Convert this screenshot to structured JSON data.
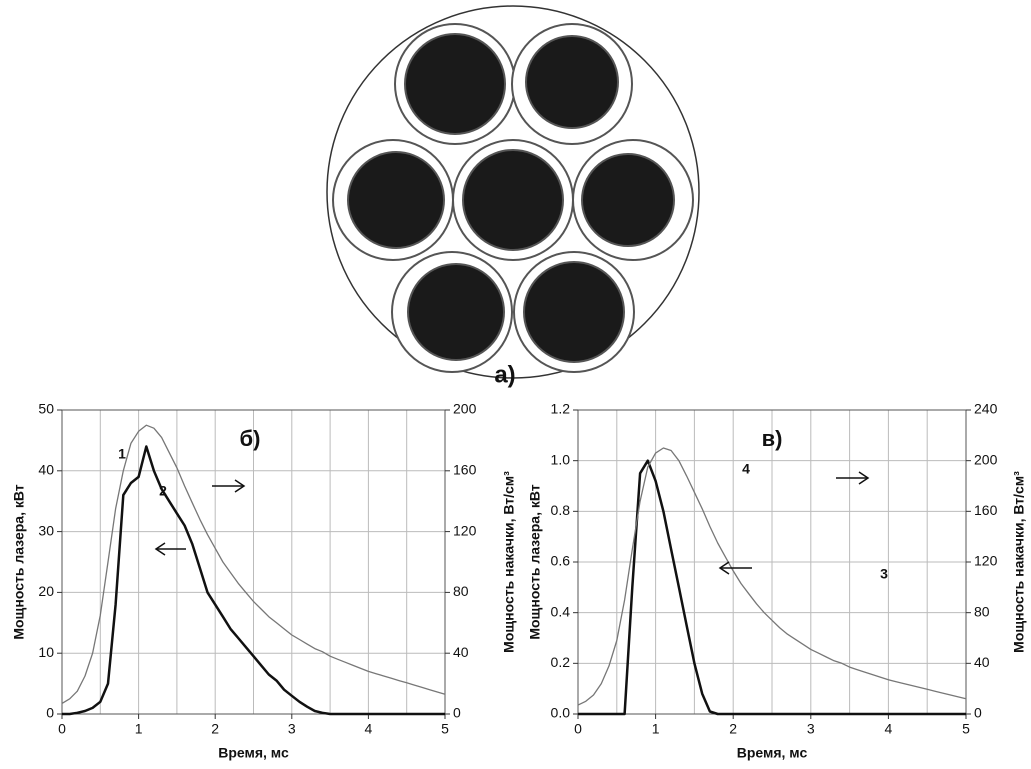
{
  "figure": {
    "label": "а)"
  },
  "chart_data": [
    {
      "type": "line",
      "panel_label": "б)",
      "annotations": [
        "1",
        "2"
      ],
      "xlabel": "Время, мс",
      "ylabel": "Мощность лазера, кВт",
      "y2label": "Мощность накачки, Вт/см³",
      "xlim": [
        0,
        5
      ],
      "xticks": [
        0,
        1,
        2,
        3,
        4,
        5
      ],
      "x_minor_ticks": [
        0.5,
        1.5,
        2.5,
        3.5,
        4.5
      ],
      "ylim": [
        0,
        50
      ],
      "yticks": [
        0,
        10,
        20,
        30,
        40,
        50
      ],
      "y2lim": [
        0,
        200
      ],
      "y2ticks": [
        0,
        40,
        80,
        120,
        160,
        200
      ],
      "grid": true,
      "x": [
        0,
        0.1,
        0.2,
        0.3,
        0.4,
        0.5,
        0.6,
        0.7,
        0.8,
        0.9,
        1,
        1.1,
        1.2,
        1.3,
        1.4,
        1.5,
        1.6,
        1.7,
        1.8,
        1.9,
        2,
        2.1,
        2.2,
        2.3,
        2.4,
        2.5,
        2.6,
        2.7,
        2.8,
        2.9,
        3,
        3.1,
        3.2,
        3.3,
        3.4,
        3.5,
        3.6,
        3.7,
        3.8,
        3.9,
        4,
        4.1,
        4.2,
        4.3,
        4.4,
        4.5,
        4.6,
        4.7,
        4.8,
        4.9,
        5
      ],
      "series": [
        {
          "color": "#111111",
          "width": 2.5,
          "axis": "y",
          "values": [
            0,
            0,
            0.2,
            0.5,
            1,
            2,
            5,
            18,
            36,
            38,
            39,
            44,
            40,
            37,
            35,
            33,
            31,
            28,
            24,
            20,
            18,
            16,
            14,
            12.5,
            11,
            9.5,
            8,
            6.5,
            5.5,
            4,
            3,
            2,
            1.2,
            0.5,
            0.2,
            0,
            0,
            0,
            0,
            0,
            0,
            0,
            0,
            0,
            0,
            0,
            0,
            0,
            0,
            0,
            0
          ]
        },
        {
          "color": "#777777",
          "width": 1.3,
          "axis": "y2",
          "values": [
            7,
            10,
            15,
            25,
            40,
            65,
            100,
            135,
            160,
            178,
            186,
            190,
            188,
            182,
            172,
            162,
            150,
            139,
            128,
            118,
            109,
            100,
            93,
            86,
            80,
            74,
            69,
            64,
            60,
            56,
            52,
            49,
            46,
            43,
            41,
            38,
            36,
            34,
            32,
            30,
            28,
            26.5,
            25,
            23.5,
            22,
            20.5,
            19,
            17.5,
            16,
            14.5,
            13
          ]
        }
      ]
    },
    {
      "type": "line",
      "panel_label": "в)",
      "annotations": [
        "4",
        "3"
      ],
      "xlabel": "Время, мс",
      "ylabel": "Мощность лазера, кВт",
      "y2label": "Мощность накачки, Вт/см³",
      "xlim": [
        0,
        5
      ],
      "xticks": [
        0,
        1,
        2,
        3,
        4,
        5
      ],
      "x_minor_ticks": [
        0.5,
        1.5,
        2.5,
        3.5,
        4.5
      ],
      "ylim": [
        0,
        1.2
      ],
      "yticks": [
        {
          "value": 0,
          "label": "0.0"
        },
        0.2,
        0.4,
        0.6,
        0.8,
        {
          "value": 1,
          "label": "1.0"
        },
        1.2
      ],
      "y2lim": [
        0,
        240
      ],
      "y2ticks": [
        0,
        40,
        80,
        120,
        160,
        200,
        240
      ],
      "grid": true,
      "x": [
        0,
        0.1,
        0.2,
        0.3,
        0.4,
        0.5,
        0.6,
        0.7,
        0.8,
        0.9,
        1,
        1.1,
        1.2,
        1.3,
        1.4,
        1.5,
        1.6,
        1.7,
        1.8,
        1.9,
        2,
        2.1,
        2.2,
        2.3,
        2.4,
        2.5,
        2.6,
        2.7,
        2.8,
        2.9,
        3,
        3.1,
        3.2,
        3.3,
        3.4,
        3.5,
        3.6,
        3.7,
        3.8,
        3.9,
        4,
        4.1,
        4.2,
        4.3,
        4.4,
        4.5,
        4.6,
        4.7,
        4.8,
        4.9,
        5
      ],
      "series": [
        {
          "color": "#111111",
          "width": 2.5,
          "axis": "y",
          "values": [
            0,
            0,
            0,
            0,
            0,
            0,
            0,
            0.5,
            0.95,
            1,
            0.92,
            0.8,
            0.65,
            0.5,
            0.35,
            0.2,
            0.08,
            0.01,
            0,
            0,
            0,
            0,
            0,
            0,
            0,
            0,
            0,
            0,
            0,
            0,
            0,
            0,
            0,
            0,
            0,
            0,
            0,
            0,
            0,
            0,
            0,
            0,
            0,
            0,
            0,
            0,
            0,
            0,
            0,
            0,
            0
          ]
        },
        {
          "color": "#777777",
          "width": 1.3,
          "axis": "y2",
          "values": [
            7,
            10,
            15,
            24,
            38,
            58,
            90,
            130,
            168,
            195,
            206,
            210,
            208,
            200,
            188,
            175,
            162,
            148,
            135,
            124,
            113,
            103,
            95,
            87,
            80,
            74,
            68,
            63,
            59,
            55,
            51,
            48,
            45,
            42,
            40,
            37,
            35,
            33,
            31,
            29,
            27,
            25.5,
            24,
            22.5,
            21,
            19.5,
            18,
            16.5,
            15,
            13.5,
            12
          ]
        }
      ]
    }
  ]
}
